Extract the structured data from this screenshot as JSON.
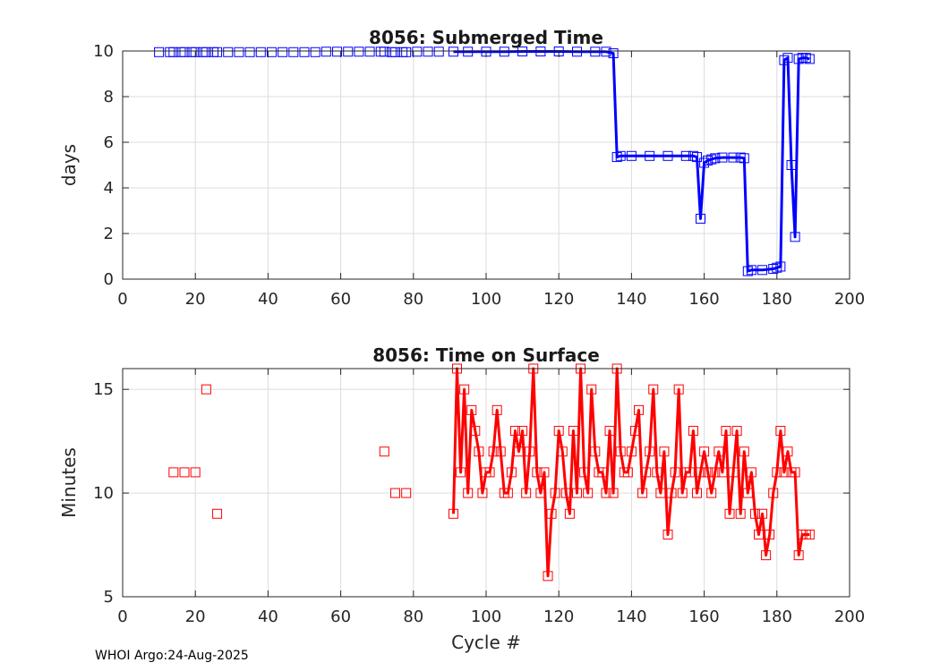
{
  "footer": "WHOI Argo:24-Aug-2025",
  "chart_data": [
    {
      "type": "line",
      "title": "8056: Submerged Time",
      "xlabel": "",
      "ylabel": "days",
      "xlim": [
        0,
        200
      ],
      "ylim": [
        0,
        10
      ],
      "xticks": [
        0,
        20,
        40,
        60,
        80,
        100,
        120,
        140,
        160,
        180,
        200
      ],
      "yticks": [
        0,
        2,
        4,
        6,
        8,
        10
      ],
      "grid": true,
      "color": "#0000ff",
      "marker": "square",
      "isolated_points": [
        [
          10,
          9.95
        ],
        [
          13,
          9.95
        ],
        [
          14,
          9.95
        ],
        [
          16,
          9.95
        ],
        [
          17,
          9.95
        ],
        [
          19,
          9.95
        ],
        [
          20,
          9.95
        ],
        [
          22,
          9.95
        ],
        [
          23,
          9.95
        ],
        [
          25,
          9.95
        ],
        [
          26,
          9.95
        ],
        [
          29,
          9.95
        ],
        [
          32,
          9.95
        ],
        [
          35,
          9.95
        ],
        [
          38,
          9.95
        ],
        [
          41,
          9.95
        ],
        [
          44,
          9.95
        ],
        [
          47,
          9.95
        ],
        [
          50,
          9.95
        ],
        [
          53,
          9.95
        ],
        [
          56,
          9.97
        ],
        [
          59,
          9.97
        ],
        [
          62,
          9.97
        ],
        [
          65,
          9.97
        ],
        [
          68,
          9.97
        ],
        [
          71,
          9.97
        ],
        [
          72,
          9.97
        ],
        [
          74,
          9.95
        ],
        [
          75,
          9.95
        ],
        [
          77,
          9.95
        ],
        [
          78,
          9.95
        ],
        [
          81,
          9.97
        ],
        [
          84,
          9.97
        ],
        [
          87,
          9.97
        ]
      ],
      "series": [
        {
          "x": [
            91,
            95,
            100,
            105,
            110,
            115,
            120,
            125,
            130,
            133,
            135,
            136,
            137,
            140,
            145,
            150,
            155,
            157,
            158,
            159,
            160,
            161,
            162,
            163,
            165,
            168,
            170,
            171,
            172,
            173,
            176,
            179,
            180,
            181,
            182,
            183,
            184,
            185,
            186,
            187,
            188,
            189
          ],
          "y": [
            9.97,
            9.97,
            9.97,
            9.97,
            9.98,
            9.98,
            9.98,
            9.97,
            9.97,
            9.97,
            9.9,
            5.35,
            5.4,
            5.4,
            5.4,
            5.4,
            5.4,
            5.4,
            5.35,
            2.65,
            5.1,
            5.2,
            5.25,
            5.3,
            5.33,
            5.33,
            5.33,
            5.3,
            0.35,
            0.4,
            0.4,
            0.45,
            0.5,
            0.55,
            9.6,
            9.7,
            5.0,
            1.85,
            9.65,
            9.7,
            9.7,
            9.65
          ]
        }
      ]
    },
    {
      "type": "line",
      "title": "8056: Time on Surface",
      "xlabel": "Cycle #",
      "ylabel": "Minutes",
      "xlim": [
        0,
        200
      ],
      "ylim": [
        5,
        16
      ],
      "xticks": [
        0,
        20,
        40,
        60,
        80,
        100,
        120,
        140,
        160,
        180,
        200
      ],
      "yticks": [
        5,
        10,
        15
      ],
      "grid": true,
      "color": "#ff0000",
      "marker": "square",
      "isolated_points": [
        [
          14,
          11
        ],
        [
          17,
          11
        ],
        [
          20,
          11
        ],
        [
          23,
          15
        ],
        [
          26,
          9
        ],
        [
          72,
          12
        ],
        [
          75,
          10
        ],
        [
          78,
          10
        ]
      ],
      "series": [
        {
          "x": [
            91,
            92,
            93,
            94,
            95,
            96,
            97,
            98,
            99,
            100,
            101,
            102,
            103,
            104,
            105,
            106,
            107,
            108,
            109,
            110,
            111,
            112,
            113,
            114,
            115,
            116,
            117,
            118,
            119,
            120,
            121,
            122,
            123,
            124,
            125,
            126,
            127,
            128,
            129,
            130,
            131,
            132,
            133,
            134,
            135,
            136,
            137,
            138,
            139,
            140,
            141,
            142,
            143,
            144,
            145,
            146,
            147,
            148,
            149,
            150,
            151,
            152,
            153,
            154,
            155,
            156,
            157,
            158,
            159,
            160,
            161,
            162,
            163,
            164,
            165,
            166,
            167,
            168,
            169,
            170,
            171,
            172,
            173,
            174,
            175,
            176,
            177,
            178,
            179,
            180,
            181,
            182,
            183,
            184,
            185,
            186,
            187,
            188,
            189
          ],
          "y": [
            9,
            16,
            11,
            15,
            10,
            14,
            13,
            12,
            10,
            11,
            11,
            12,
            14,
            12,
            10,
            10,
            11,
            13,
            12,
            13,
            10,
            12,
            16,
            11,
            10,
            11,
            6,
            9,
            10,
            13,
            12,
            10,
            9,
            13,
            10,
            16,
            11,
            10,
            15,
            12,
            11,
            11,
            10,
            13,
            10,
            16,
            12,
            11,
            11,
            12,
            13,
            14,
            10,
            11,
            12,
            15,
            11,
            10,
            12,
            8,
            10,
            11,
            15,
            10,
            11,
            11,
            13,
            10,
            11,
            12,
            11,
            10,
            11,
            12,
            11,
            13,
            9,
            11,
            13,
            9,
            12,
            10,
            11,
            9,
            8,
            9,
            7,
            8,
            10,
            11,
            13,
            11,
            12,
            11,
            11,
            7,
            8,
            8,
            8
          ]
        }
      ]
    }
  ]
}
